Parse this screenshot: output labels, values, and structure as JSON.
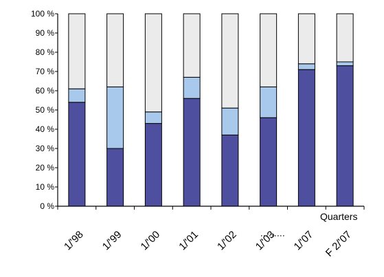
{
  "chart_data": {
    "type": "bar",
    "stacked": true,
    "normalized": true,
    "categories": [
      "1/'98",
      "1/'99",
      "1/'00",
      "1/'01",
      "1/'02",
      "1/'03",
      "1/'07",
      "F 2/'07"
    ],
    "series": [
      {
        "color": "#4f4f9f",
        "values": [
          54,
          30,
          43,
          56,
          37,
          46,
          71,
          73
        ]
      },
      {
        "color": "#a9c9ec",
        "values": [
          7,
          32,
          6,
          11,
          14,
          16,
          3,
          2
        ]
      },
      {
        "color": "#ebebeb",
        "values": [
          39,
          38,
          51,
          33,
          49,
          38,
          26,
          25
        ]
      }
    ],
    "ylim": [
      0,
      100
    ],
    "yticks": [
      "0 %",
      "10 %",
      "20 %",
      "30 %",
      "40 %",
      "50 %",
      "60 %",
      "70 %",
      "80 %",
      "90 %",
      "100 %"
    ],
    "xlabel": "Quarters",
    "grid": false,
    "legend": "none"
  }
}
